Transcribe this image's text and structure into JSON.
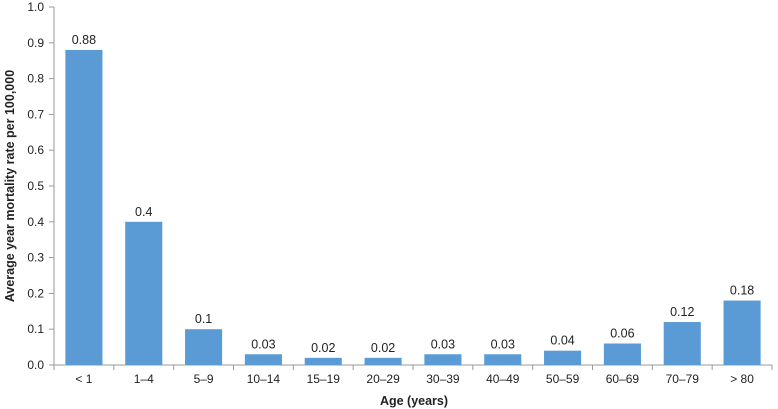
{
  "chart_data": {
    "type": "bar",
    "categories": [
      "< 1",
      "1–4",
      "5–9",
      "10–14",
      "15–19",
      "20–29",
      "30–39",
      "40–49",
      "50–59",
      "60–69",
      "70–79",
      "> 80"
    ],
    "values": [
      0.88,
      0.4,
      0.1,
      0.03,
      0.02,
      0.02,
      0.03,
      0.03,
      0.04,
      0.06,
      0.12,
      0.18
    ],
    "data_labels": [
      "0.88",
      "0.4",
      "0.1",
      "0.03",
      "0.02",
      "0.02",
      "0.03",
      "0.03",
      "0.04",
      "0.06",
      "0.12",
      "0.18"
    ],
    "xlabel": "Age (years)",
    "ylabel": "Average year mortality rate per 100,000",
    "ylim": [
      0,
      1.0
    ],
    "yticks": [
      "0.0",
      "0.1",
      "0.2",
      "0.3",
      "0.4",
      "0.5",
      "0.6",
      "0.7",
      "0.8",
      "0.9",
      "1.0"
    ],
    "grid": false,
    "bar_color": "#5b9bd5",
    "axis_color": "#999999"
  }
}
